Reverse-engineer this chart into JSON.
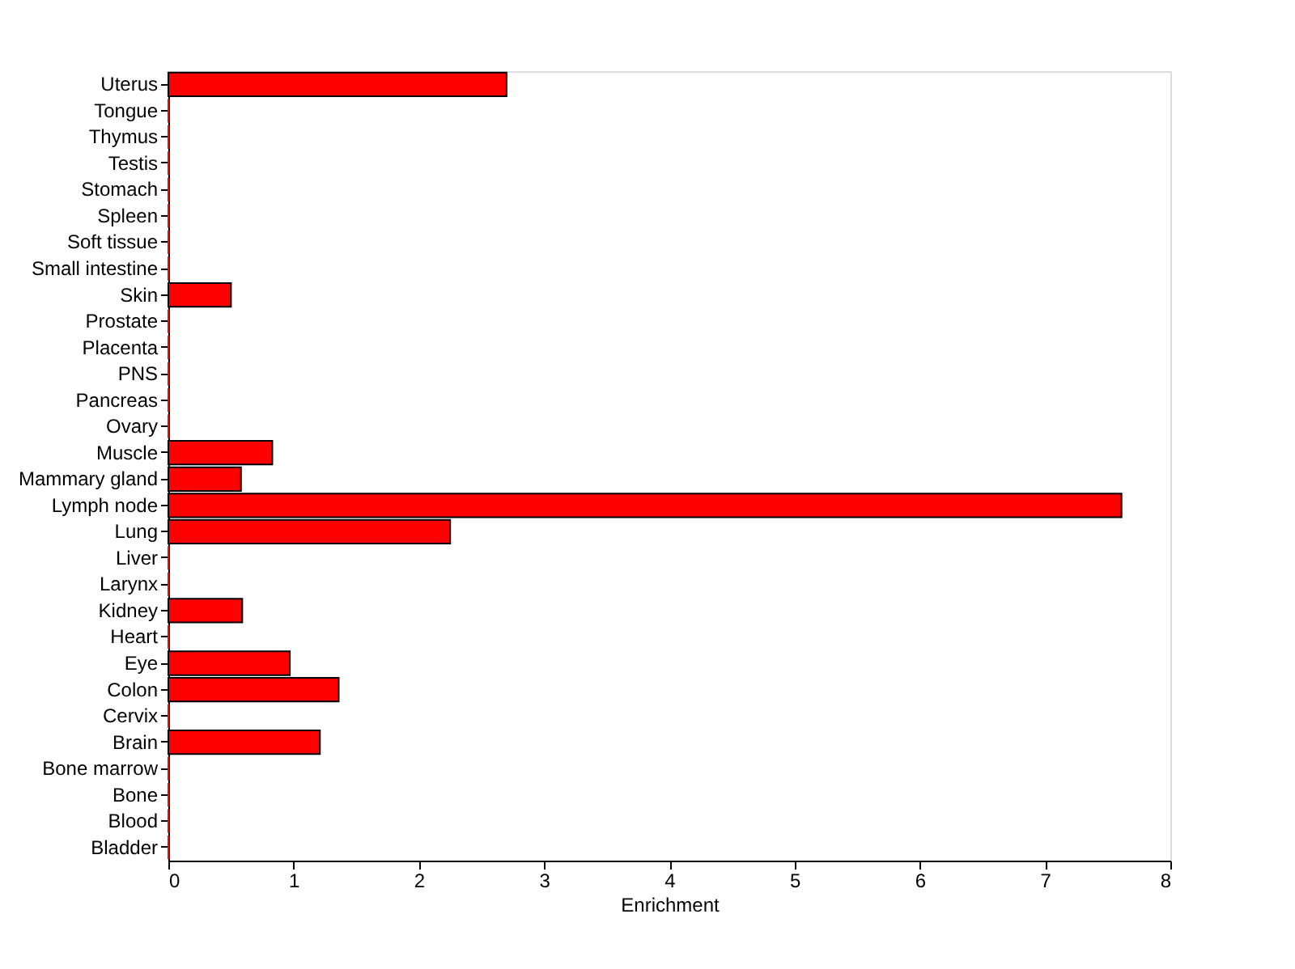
{
  "chart_data": {
    "type": "bar",
    "orientation": "horizontal",
    "xlabel": "Enrichment",
    "categories": [
      "Uterus",
      "Tongue",
      "Thymus",
      "Testis",
      "Stomach",
      "Spleen",
      "Soft tissue",
      "Small intestine",
      "Skin",
      "Prostate",
      "Placenta",
      "PNS",
      "Pancreas",
      "Ovary",
      "Muscle",
      "Mammary gland",
      "Lymph node",
      "Lung",
      "Liver",
      "Larynx",
      "Kidney",
      "Heart",
      "Eye",
      "Colon",
      "Cervix",
      "Brain",
      "Bone marrow",
      "Bone",
      "Blood",
      "Bladder"
    ],
    "values": [
      2.7,
      0,
      0,
      0,
      0,
      0,
      0,
      0,
      0.5,
      0,
      0,
      0,
      0,
      0,
      0.83,
      0.58,
      7.61,
      2.25,
      0,
      0,
      0.59,
      0,
      0.97,
      1.36,
      0,
      1.21,
      0,
      0,
      0,
      0
    ],
    "color": "#ff0000",
    "xlim": [
      0,
      8
    ],
    "xticks": [
      0,
      1,
      2,
      3,
      4,
      5,
      6,
      7,
      8
    ],
    "grid": false
  }
}
